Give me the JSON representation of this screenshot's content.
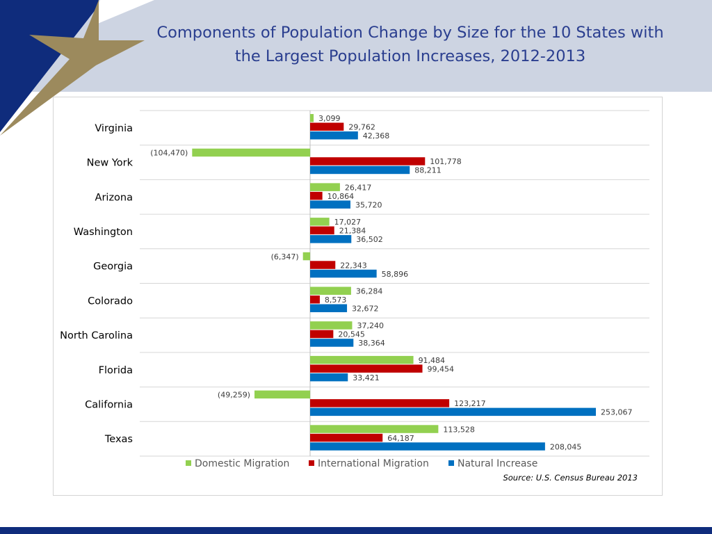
{
  "slide": {
    "title_line1": "Components of Population Change by Size for the 10 States with",
    "title_line2": "the Largest Population Increases, 2012-2013",
    "colors": {
      "header_bg": "#cdd4e2",
      "title": "#2a3e8f",
      "corner_blue": "#0f2c7c",
      "star": "#9c8a5d"
    }
  },
  "chart_data": {
    "type": "bar",
    "orientation": "horizontal",
    "categories": [
      "Virginia",
      "New York",
      "Arizona",
      "Washington",
      "Georgia",
      "Colorado",
      "North Carolina",
      "Florida",
      "California",
      "Texas"
    ],
    "series": [
      {
        "name": "Domestic Migration",
        "color": "#92d050",
        "values": [
          3099,
          -104470,
          26417,
          17027,
          -6347,
          36284,
          37240,
          91484,
          -49259,
          113528
        ],
        "labels": [
          "3,099",
          "(104,470)",
          "26,417",
          "17,027",
          "(6,347)",
          "36,284",
          "37,240",
          "91,484",
          "(49,259)",
          "113,528"
        ]
      },
      {
        "name": "International Migration",
        "color": "#c00000",
        "values": [
          29762,
          101778,
          10864,
          21384,
          22343,
          8573,
          20545,
          99454,
          123217,
          64187
        ],
        "labels": [
          "29,762",
          "101,778",
          "10,864",
          "21,384",
          "22,343",
          "8,573",
          "20,545",
          "99,454",
          "123,217",
          "64,187"
        ]
      },
      {
        "name": "Natural Increase",
        "color": "#0070c0",
        "values": [
          42368,
          88211,
          35720,
          36502,
          58896,
          32672,
          38364,
          33421,
          253067,
          208045
        ],
        "labels": [
          "42,368",
          "88,211",
          "35,720",
          "36,502",
          "58,896",
          "32,672",
          "38,364",
          "33,421",
          "253,067",
          "208,045"
        ]
      }
    ],
    "xlim": [
      -150000,
      300000
    ],
    "grid": true,
    "legend_position": "bottom",
    "source": "Source: U.S. Census Bureau 2013"
  }
}
